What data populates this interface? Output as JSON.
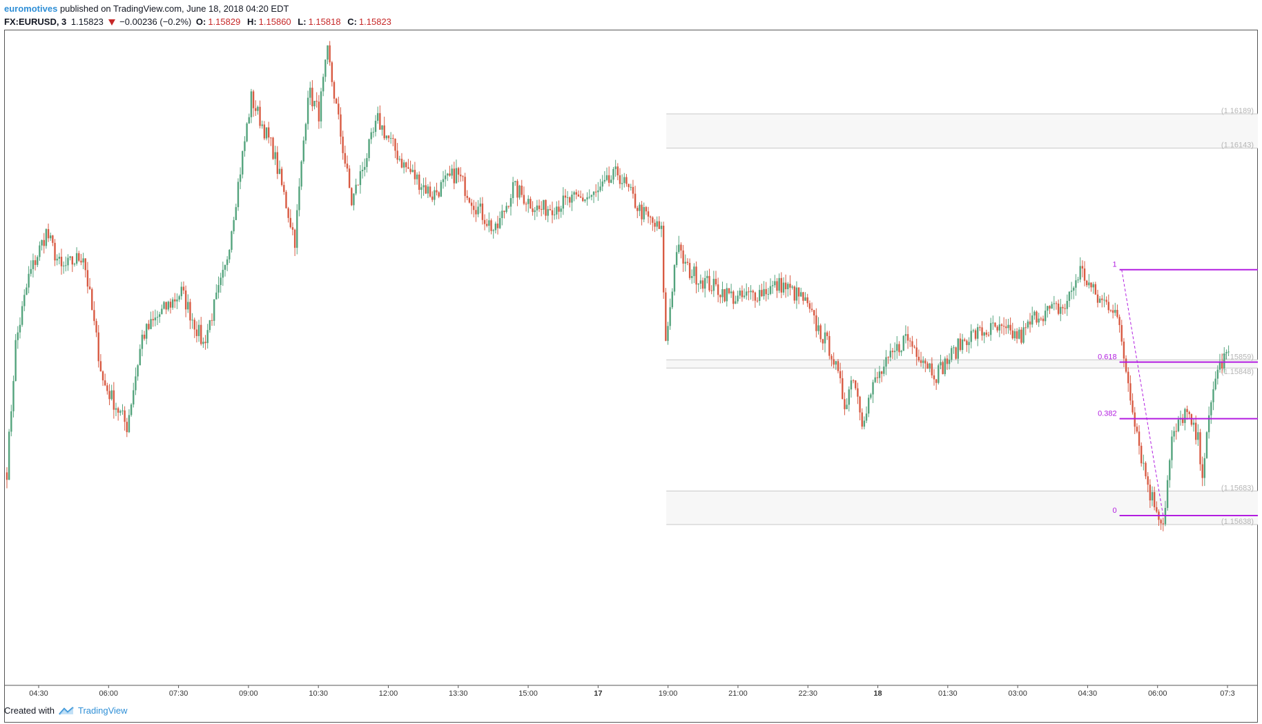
{
  "header": {
    "author": "euromotives",
    "published_text": "published on TradingView.com, June 18, 2018 04:20 EDT",
    "symbol": "FX:EURUSD, 3",
    "last_price": "1.15823",
    "change": "−0.00236 (−0.2%)",
    "open_label": "O:",
    "open": "1.15829",
    "high_label": "H:",
    "high": "1.15860",
    "low_label": "L:",
    "low": "1.15818",
    "close_label": "C:",
    "close": "1.15823"
  },
  "footer": {
    "created_with": "Created with",
    "brand": "TradingView"
  },
  "colors": {
    "up": "#53a37c",
    "down": "#d85a42",
    "fib": "#b21ce0",
    "zone_line": "#c8c8c8",
    "zone_fill": "#f7f7f7"
  },
  "chart_data": {
    "type": "candlestick",
    "symbol": "FX:EURUSD",
    "interval": "3",
    "x_ticks": [
      "04:30",
      "06:00",
      "07:30",
      "09:00",
      "10:30",
      "12:00",
      "13:30",
      "15:00",
      "17",
      "19:00",
      "21:00",
      "22:30",
      "18",
      "01:30",
      "03:00",
      "04:30",
      "06:00",
      "07:3"
    ],
    "zones": [
      {
        "top": 1.16189,
        "bottom": 1.16143,
        "labels": [
          "(1.16189)",
          "(1.16143)"
        ]
      },
      {
        "top": 1.15859,
        "bottom": 1.15848,
        "labels": [
          "(1.15859)",
          "(1.15848)"
        ]
      },
      {
        "top": 1.15683,
        "bottom": 1.15638,
        "labels": [
          "(1.15683)",
          "(1.15638)"
        ]
      }
    ],
    "fibonacci": [
      {
        "level": "1",
        "price": 1.1598
      },
      {
        "level": "0.618",
        "price": 1.15856
      },
      {
        "level": "0.382",
        "price": 1.1578
      },
      {
        "level": "0",
        "price": 1.1565
      }
    ],
    "path_points": [
      [
        0,
        1.1571
      ],
      [
        4,
        1.1588
      ],
      [
        10,
        1.1597
      ],
      [
        18,
        1.1603
      ],
      [
        25,
        1.1598
      ],
      [
        35,
        1.16
      ],
      [
        44,
        1.1583
      ],
      [
        55,
        1.1577
      ],
      [
        62,
        1.1589
      ],
      [
        70,
        1.1592
      ],
      [
        80,
        1.1595
      ],
      [
        90,
        1.1588
      ],
      [
        100,
        1.1598
      ],
      [
        112,
        1.1621
      ],
      [
        122,
        1.1614
      ],
      [
        132,
        1.1602
      ],
      [
        138,
        1.1622
      ],
      [
        143,
        1.1619
      ],
      [
        147,
        1.1627
      ],
      [
        158,
        1.1607
      ],
      [
        170,
        1.1618
      ],
      [
        182,
        1.1612
      ],
      [
        195,
        1.1608
      ],
      [
        206,
        1.1611
      ],
      [
        214,
        1.1607
      ],
      [
        224,
        1.1603
      ],
      [
        232,
        1.1609
      ],
      [
        244,
        1.1606
      ],
      [
        256,
        1.1607
      ],
      [
        270,
        1.1608
      ],
      [
        280,
        1.1611
      ],
      [
        290,
        1.1606
      ],
      [
        300,
        1.1603
      ],
      [
        302,
        1.1588
      ],
      [
        307,
        1.1601
      ],
      [
        312,
        1.1598
      ],
      [
        322,
        1.1596
      ],
      [
        335,
        1.1594
      ],
      [
        345,
        1.1595
      ],
      [
        355,
        1.1596
      ],
      [
        365,
        1.1594
      ],
      [
        370,
        1.1591
      ],
      [
        378,
        1.1587
      ],
      [
        384,
        1.158
      ],
      [
        388,
        1.1584
      ],
      [
        392,
        1.1578
      ],
      [
        398,
        1.1583
      ],
      [
        412,
        1.1589
      ],
      [
        426,
        1.1584
      ],
      [
        440,
        1.1589
      ],
      [
        452,
        1.159
      ],
      [
        465,
        1.1589
      ],
      [
        472,
        1.1592
      ],
      [
        485,
        1.1593
      ],
      [
        492,
        1.1598
      ],
      [
        500,
        1.1594
      ],
      [
        508,
        1.1593
      ],
      [
        514,
        1.1583
      ],
      [
        520,
        1.1573
      ],
      [
        524,
        1.1568
      ],
      [
        530,
        1.1564
      ],
      [
        534,
        1.1575
      ],
      [
        540,
        1.1579
      ],
      [
        546,
        1.1575
      ],
      [
        548,
        1.1571
      ],
      [
        554,
        1.1584
      ],
      [
        560,
        1.1587
      ]
    ]
  }
}
